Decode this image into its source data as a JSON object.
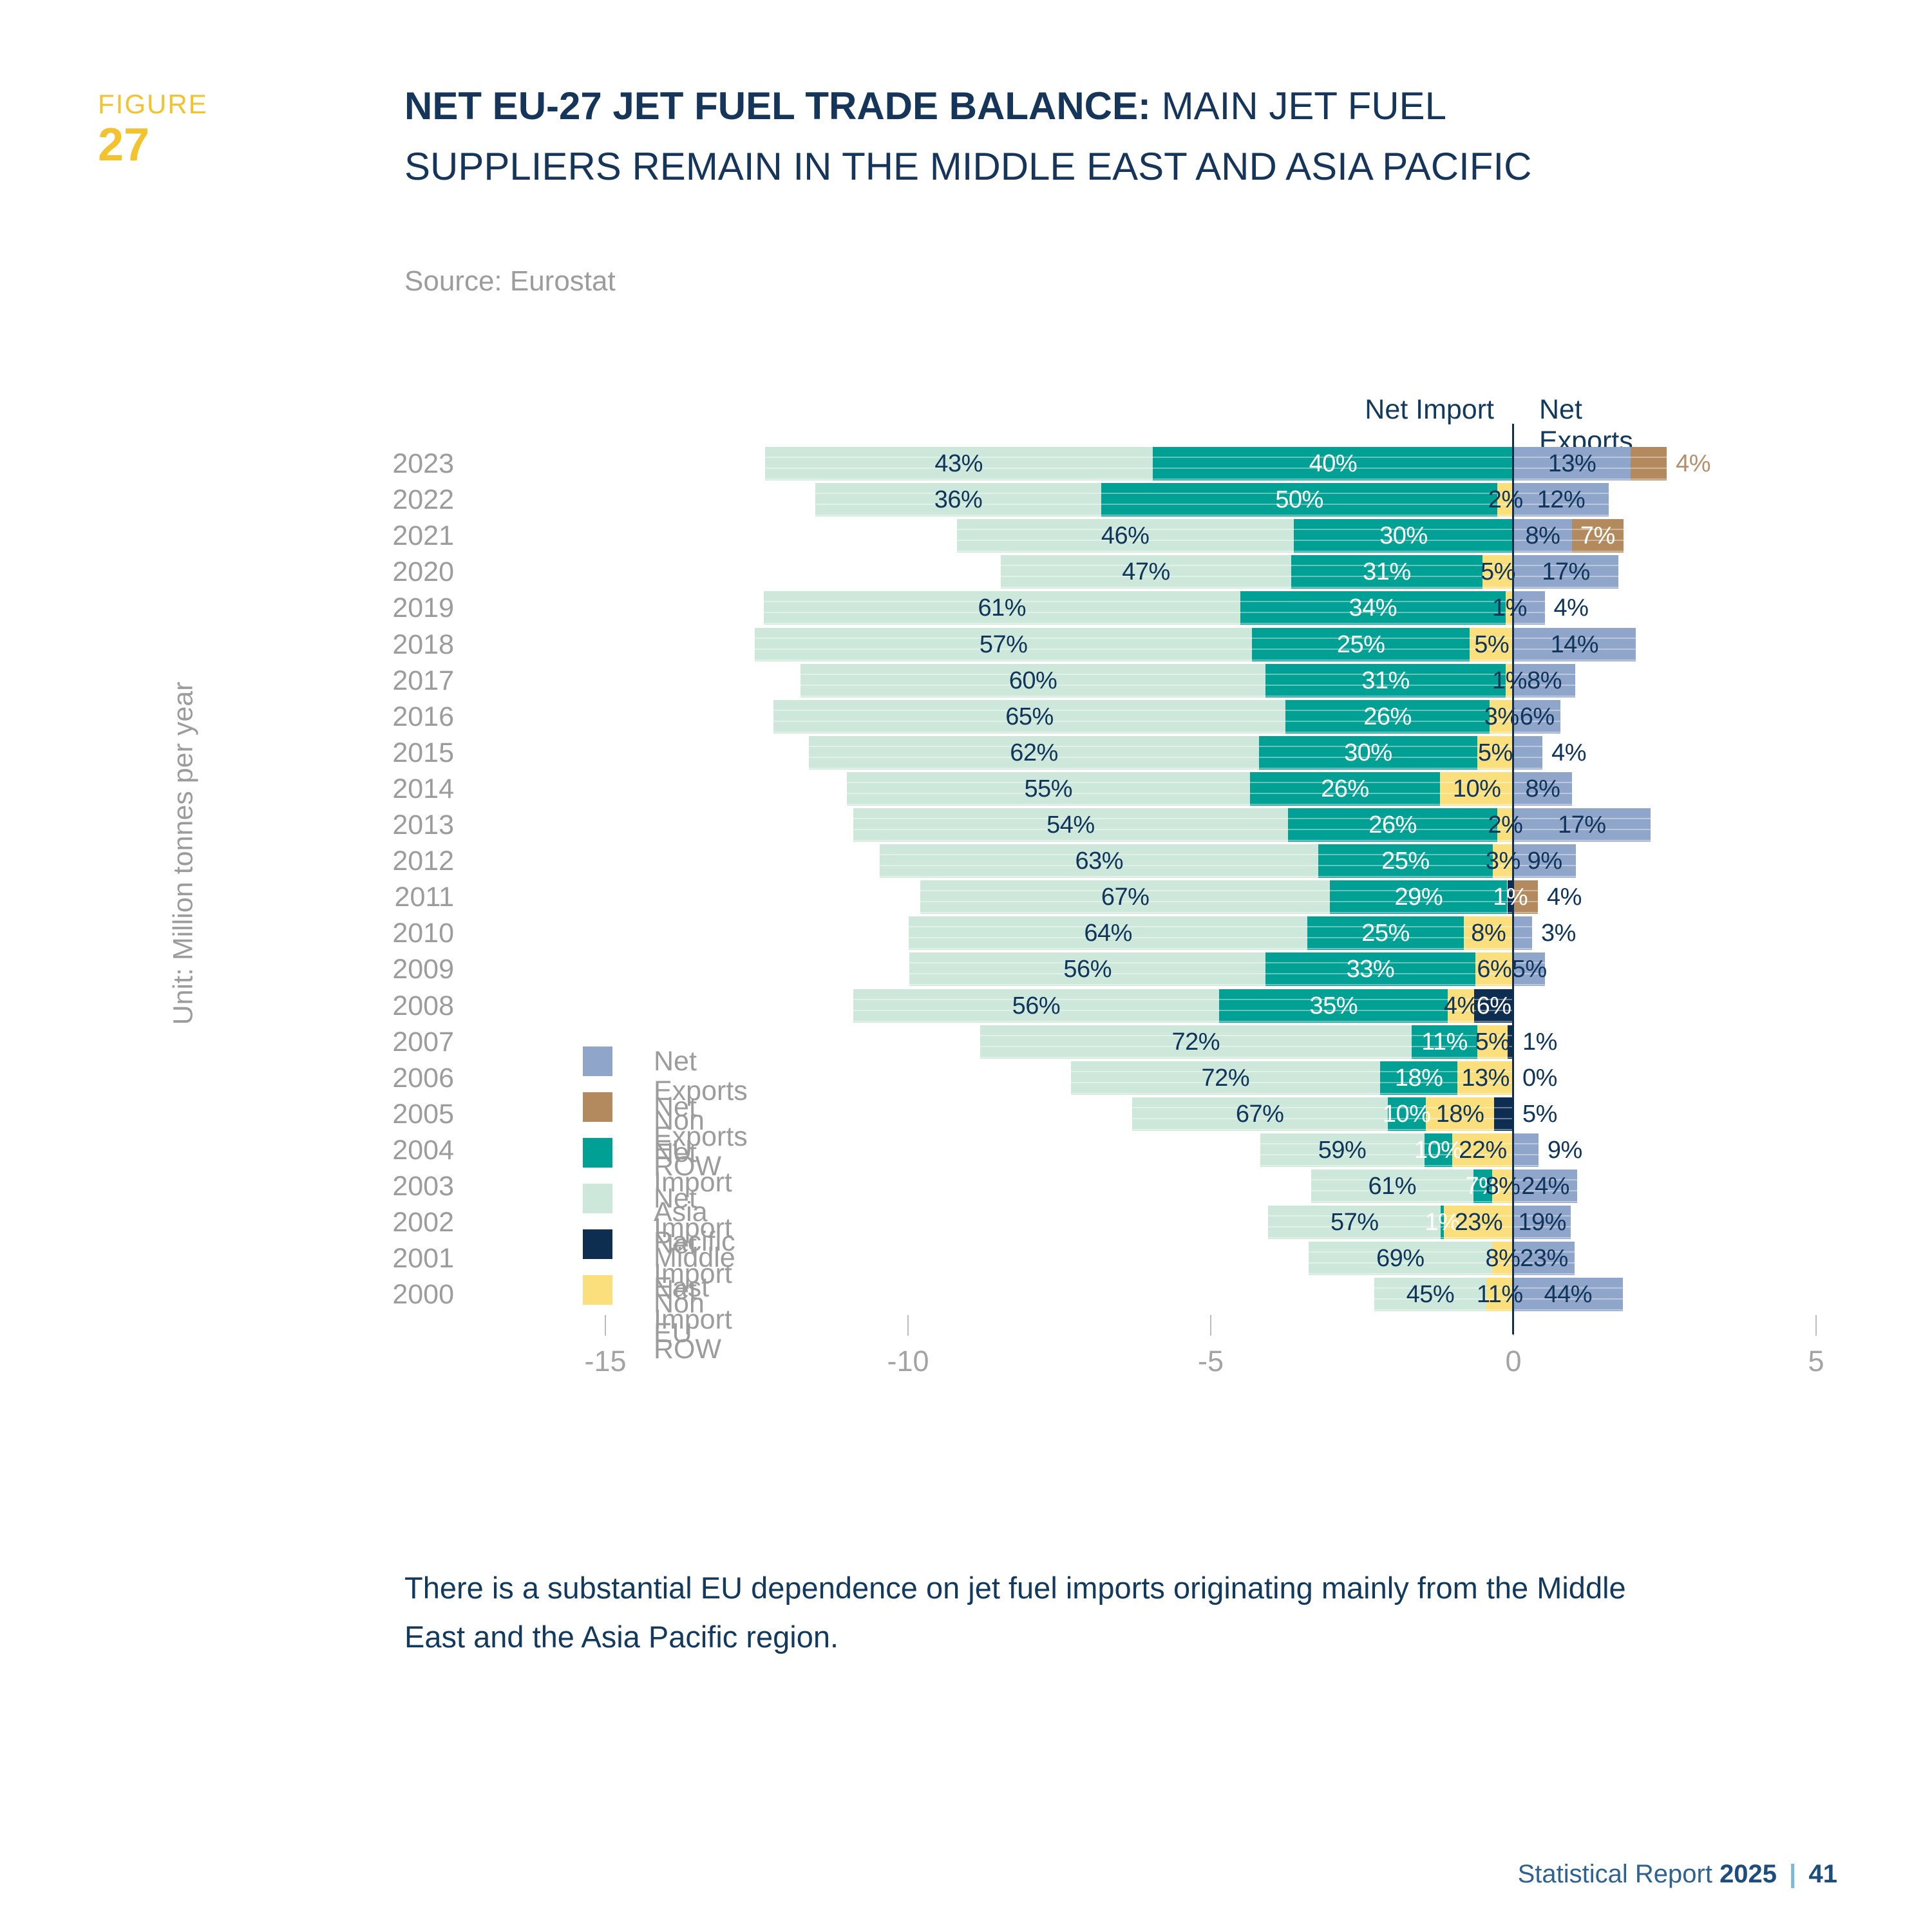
{
  "page": {
    "figure": {
      "label": "FIGURE",
      "number": "27"
    },
    "title": {
      "bold": "NET EU-27 JET FUEL TRADE BALANCE:",
      "regular": " MAIN JET FUEL",
      "line2": "SUPPLIERS REMAIN IN THE MIDDLE EAST AND ASIA PACIFIC"
    },
    "source": "Source: Eurostat",
    "caption_line1": "There is a substantial EU dependence on jet fuel imports originating mainly from the Middle",
    "caption_line2": "East and the Asia Pacific region.",
    "footer": {
      "prefix": "Statistical Report",
      "year": "2025",
      "separator": "|",
      "page": "41"
    }
  },
  "chart_data": {
    "type": "bar",
    "orientation": "horizontal-diverging-stacked",
    "title": "NET EU-27 JET FUEL TRADE BALANCE: MAIN JET FUEL SUPPLIERS REMAIN IN THE MIDDLE EAST AND ASIA PACIFIC",
    "source": "Source: Eurostat",
    "unit_label": "Unit: Million tonnes per year",
    "column_headers": {
      "left": "Net Import",
      "right": "Net Exports"
    },
    "x_axis": {
      "ticks": [
        -15,
        -10,
        -5,
        0,
        5
      ],
      "tick_labels": [
        "-15",
        "-10",
        "-5",
        "0",
        "5"
      ],
      "xlim": [
        -15,
        5
      ],
      "unit": "million tonnes per year"
    },
    "colors": {
      "import_me": "#cde8da",
      "import_ap": "#00a095",
      "import_row": "#fbdf7d",
      "import_noneu": "#0d2d51",
      "export_noneu": "#90a5ca",
      "export_row": "#b38a5e"
    },
    "label_text_colors": {
      "import_me": "#10355b",
      "import_ap": "#ffffff",
      "import_row": "#10355b",
      "import_noneu": "#ffffff",
      "export_noneu": "#10355b",
      "export_row": "#ffffff",
      "outside_default": "#10355b"
    },
    "legend": [
      {
        "region": "export_noneu",
        "label": "Net Exports Non EU"
      },
      {
        "region": "export_row",
        "label": "Net Exports ROW"
      },
      {
        "region": "import_ap",
        "label": "Net Import Asia Pacific"
      },
      {
        "region": "import_me",
        "label": "Net Import Middle East"
      },
      {
        "region": "import_noneu",
        "label": "Net Import Non EU"
      },
      {
        "region": "import_row",
        "label": "Net Import ROW"
      }
    ],
    "rows": [
      {
        "year": "2023",
        "total_mt": 14.9,
        "segments": [
          {
            "region": "import_me",
            "pct": 43
          },
          {
            "region": "import_ap",
            "pct": 40
          },
          {
            "region": "export_noneu",
            "pct": 13
          },
          {
            "region": "export_row",
            "pct": 4,
            "label_outside": true,
            "label_color": "#b5906b"
          }
        ]
      },
      {
        "year": "2022",
        "total_mt": 13.1,
        "segments": [
          {
            "region": "import_me",
            "pct": 36
          },
          {
            "region": "import_ap",
            "pct": 50
          },
          {
            "region": "import_row",
            "pct": 2
          },
          {
            "region": "export_noneu",
            "pct": 12
          }
        ]
      },
      {
        "year": "2021",
        "total_mt": 12.1,
        "segments": [
          {
            "region": "import_me",
            "pct": 46
          },
          {
            "region": "import_ap",
            "pct": 30
          },
          {
            "region": "export_noneu",
            "pct": 8
          },
          {
            "region": "export_row",
            "pct": 7
          }
        ]
      },
      {
        "year": "2020",
        "total_mt": 10.2,
        "segments": [
          {
            "region": "import_me",
            "pct": 47
          },
          {
            "region": "import_ap",
            "pct": 31
          },
          {
            "region": "import_row",
            "pct": 5
          },
          {
            "region": "export_noneu",
            "pct": 17
          }
        ]
      },
      {
        "year": "2019",
        "total_mt": 12.9,
        "segments": [
          {
            "region": "import_me",
            "pct": 61
          },
          {
            "region": "import_ap",
            "pct": 34
          },
          {
            "region": "import_row",
            "pct": 1
          },
          {
            "region": "export_noneu",
            "pct": 4,
            "label_outside": true
          }
        ]
      },
      {
        "year": "2018",
        "total_mt": 14.4,
        "segments": [
          {
            "region": "import_me",
            "pct": 57
          },
          {
            "region": "import_ap",
            "pct": 25
          },
          {
            "region": "import_row",
            "pct": 5
          },
          {
            "region": "export_noneu",
            "pct": 14
          }
        ]
      },
      {
        "year": "2017",
        "total_mt": 12.8,
        "segments": [
          {
            "region": "import_me",
            "pct": 60
          },
          {
            "region": "import_ap",
            "pct": 31
          },
          {
            "region": "import_row",
            "pct": 1
          },
          {
            "region": "export_noneu",
            "pct": 8
          }
        ]
      },
      {
        "year": "2016",
        "total_mt": 13.0,
        "segments": [
          {
            "region": "import_me",
            "pct": 65
          },
          {
            "region": "import_ap",
            "pct": 26
          },
          {
            "region": "import_row",
            "pct": 3
          },
          {
            "region": "export_noneu",
            "pct": 6
          }
        ]
      },
      {
        "year": "2015",
        "total_mt": 12.0,
        "segments": [
          {
            "region": "import_me",
            "pct": 62
          },
          {
            "region": "import_ap",
            "pct": 30
          },
          {
            "region": "import_row",
            "pct": 5
          },
          {
            "region": "export_noneu",
            "pct": 4,
            "label_outside": true
          }
        ]
      },
      {
        "year": "2014",
        "total_mt": 12.1,
        "segments": [
          {
            "region": "import_me",
            "pct": 55
          },
          {
            "region": "import_ap",
            "pct": 26
          },
          {
            "region": "import_row",
            "pct": 10
          },
          {
            "region": "export_noneu",
            "pct": 8
          }
        ]
      },
      {
        "year": "2013",
        "total_mt": 13.3,
        "segments": [
          {
            "region": "import_me",
            "pct": 54
          },
          {
            "region": "import_ap",
            "pct": 26
          },
          {
            "region": "import_row",
            "pct": 2
          },
          {
            "region": "export_noneu",
            "pct": 17
          }
        ]
      },
      {
        "year": "2012",
        "total_mt": 11.5,
        "segments": [
          {
            "region": "import_me",
            "pct": 63
          },
          {
            "region": "import_ap",
            "pct": 25
          },
          {
            "region": "import_row",
            "pct": 3
          },
          {
            "region": "export_noneu",
            "pct": 9
          }
        ]
      },
      {
        "year": "2011",
        "total_mt": 10.1,
        "segments": [
          {
            "region": "import_me",
            "pct": 67
          },
          {
            "region": "import_ap",
            "pct": 29
          },
          {
            "region": "import_noneu",
            "pct": 1
          },
          {
            "region": "export_row",
            "pct": 4,
            "label_outside": true
          }
        ]
      },
      {
        "year": "2010",
        "total_mt": 10.3,
        "segments": [
          {
            "region": "import_me",
            "pct": 64
          },
          {
            "region": "import_ap",
            "pct": 25
          },
          {
            "region": "import_row",
            "pct": 8
          },
          {
            "region": "export_noneu",
            "pct": 3,
            "label_outside": true
          }
        ]
      },
      {
        "year": "2009",
        "total_mt": 10.5,
        "segments": [
          {
            "region": "import_me",
            "pct": 56
          },
          {
            "region": "import_ap",
            "pct": 33
          },
          {
            "region": "import_row",
            "pct": 6
          },
          {
            "region": "export_noneu",
            "pct": 5
          }
        ]
      },
      {
        "year": "2008",
        "total_mt": 10.8,
        "segments": [
          {
            "region": "import_me",
            "pct": 56
          },
          {
            "region": "import_ap",
            "pct": 35
          },
          {
            "region": "import_row",
            "pct": 4
          },
          {
            "region": "import_noneu",
            "pct": 6
          }
        ]
      },
      {
        "year": "2007",
        "total_mt": 9.9,
        "segments": [
          {
            "region": "import_me",
            "pct": 72
          },
          {
            "region": "import_ap",
            "pct": 11
          },
          {
            "region": "import_row",
            "pct": 5
          },
          {
            "region": "import_noneu",
            "pct": 1,
            "label_outside": true
          }
        ]
      },
      {
        "year": "2006",
        "total_mt": 7.1,
        "segments": [
          {
            "region": "import_me",
            "pct": 72
          },
          {
            "region": "import_ap",
            "pct": 18
          },
          {
            "region": "import_row",
            "pct": 13
          },
          {
            "region": "export_noneu",
            "pct": 0,
            "label_outside": true
          }
        ]
      },
      {
        "year": "2005",
        "total_mt": 6.3,
        "segments": [
          {
            "region": "import_me",
            "pct": 67
          },
          {
            "region": "import_ap",
            "pct": 10
          },
          {
            "region": "import_row",
            "pct": 18
          },
          {
            "region": "import_noneu",
            "pct": 5,
            "label_outside": true
          }
        ]
      },
      {
        "year": "2004",
        "total_mt": 4.6,
        "segments": [
          {
            "region": "import_me",
            "pct": 59
          },
          {
            "region": "import_ap",
            "pct": 10
          },
          {
            "region": "import_row",
            "pct": 22
          },
          {
            "region": "export_noneu",
            "pct": 9,
            "label_outside": true
          }
        ]
      },
      {
        "year": "2003",
        "total_mt": 4.4,
        "segments": [
          {
            "region": "import_me",
            "pct": 61
          },
          {
            "region": "import_ap",
            "pct": 7
          },
          {
            "region": "import_row",
            "pct": 8
          },
          {
            "region": "export_noneu",
            "pct": 24
          }
        ]
      },
      {
        "year": "2002",
        "total_mt": 5.0,
        "segments": [
          {
            "region": "import_me",
            "pct": 57
          },
          {
            "region": "import_ap",
            "pct": 1
          },
          {
            "region": "import_row",
            "pct": 23
          },
          {
            "region": "export_noneu",
            "pct": 19
          }
        ]
      },
      {
        "year": "2001",
        "total_mt": 4.4,
        "segments": [
          {
            "region": "import_me",
            "pct": 69
          },
          {
            "region": "import_row",
            "pct": 8
          },
          {
            "region": "export_noneu",
            "pct": 23
          }
        ]
      },
      {
        "year": "2000",
        "total_mt": 4.1,
        "segments": [
          {
            "region": "import_me",
            "pct": 45
          },
          {
            "region": "import_row",
            "pct": 11
          },
          {
            "region": "export_noneu",
            "pct": 44
          }
        ]
      }
    ]
  }
}
